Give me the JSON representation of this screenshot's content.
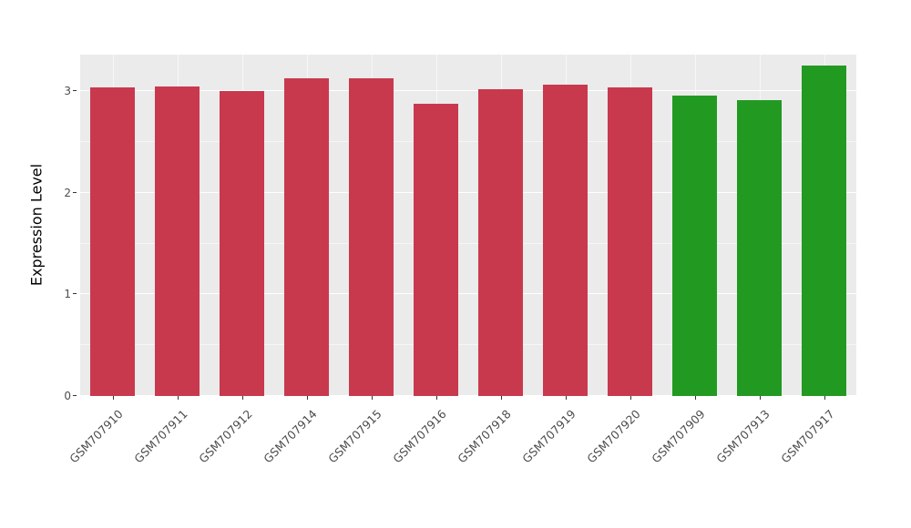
{
  "chart_data": {
    "type": "bar",
    "title": "",
    "xlabel": "",
    "ylabel": "Expression Level",
    "ylim": [
      0,
      3.36
    ],
    "yticks": [
      0,
      1,
      2,
      3
    ],
    "minor_ticks": [
      0.5,
      1.5,
      2.5
    ],
    "grid": "on",
    "legend": "none",
    "categories": [
      "GSM707910",
      "GSM707911",
      "GSM707912",
      "GSM707914",
      "GSM707915",
      "GSM707916",
      "GSM707918",
      "GSM707919",
      "GSM707920",
      "GSM707909",
      "GSM707913",
      "GSM707917"
    ],
    "values": [
      3.04,
      3.05,
      3.0,
      3.13,
      3.13,
      2.88,
      3.02,
      3.06,
      3.04,
      2.96,
      2.91,
      3.25
    ],
    "groups": [
      "red",
      "red",
      "red",
      "red",
      "red",
      "red",
      "red",
      "red",
      "red",
      "green",
      "green",
      "green"
    ],
    "group_colors": {
      "red": "#C8394E",
      "green": "#229A22"
    },
    "panel_background": "#EBEBEB",
    "grid_color": "#FFFFFF"
  }
}
